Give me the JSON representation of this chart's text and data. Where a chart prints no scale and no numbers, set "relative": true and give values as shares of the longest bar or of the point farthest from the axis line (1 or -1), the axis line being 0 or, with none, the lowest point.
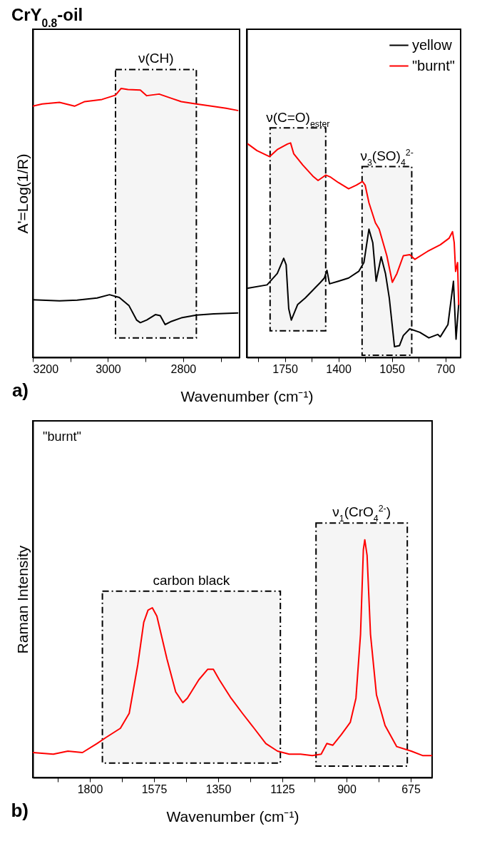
{
  "chart_data": [
    {
      "type": "line",
      "title": "CrY$_{0.8}$-oil",
      "ylabel": "A'=Log(1/R)",
      "xlabel": "Wavenumber (cm⁻¹)",
      "relative": true,
      "xlim": [
        3200,
        2650
      ],
      "xticks": [
        3200,
        {
          "value": 3100,
          "label": null
        },
        3000,
        {
          "value": 2900,
          "label": null
        },
        2800,
        {
          "value": 2700,
          "label": null
        }
      ],
      "annotations": [
        "a)"
      ],
      "bands": [
        {
          "axis": "x",
          "from": 2980,
          "to": 2765,
          "label": "ν(CH)"
        }
      ],
      "series": [
        {
          "color": "#000000",
          "x": [
            3200,
            3129,
            3082,
            3029,
            2996,
            2970,
            2944,
            2924,
            2914,
            2897,
            2874,
            2861,
            2848,
            2831,
            2805,
            2765,
            2719,
            2655
          ],
          "values": [
            0.214,
            0.21,
            0.213,
            0.221,
            0.233,
            0.223,
            0.192,
            0.139,
            0.129,
            0.139,
            0.159,
            0.155,
            0.122,
            0.134,
            0.147,
            0.157,
            0.162,
            0.165
          ]
        },
        {
          "color": "#ff0000",
          "x": [
            3200,
            3175,
            3129,
            3089,
            3062,
            3016,
            2980,
            2965,
            2947,
            2914,
            2897,
            2864,
            2831,
            2805,
            2765,
            2725,
            2686,
            2655
          ],
          "values": [
            0.934,
            0.942,
            0.948,
            0.934,
            0.951,
            0.959,
            0.975,
            1.0,
            0.996,
            0.994,
            0.973,
            0.979,
            0.963,
            0.951,
            0.942,
            0.934,
            0.926,
            0.918
          ]
        }
      ]
    },
    {
      "type": "line",
      "relative": true,
      "xlim": [
        2000,
        600
      ],
      "legend": "top right",
      "xticks": [
        {
          "value": 1925,
          "label": null
        },
        1750,
        {
          "value": 1575,
          "label": null
        },
        1400,
        {
          "value": 1225,
          "label": null
        },
        1050,
        {
          "value": 875,
          "label": null
        },
        700
      ],
      "bands": [
        {
          "axis": "x",
          "from": 1847,
          "to": 1483,
          "label": "ν(C=O)$_{ester}$"
        },
        {
          "axis": "x",
          "from": 1245,
          "to": 920,
          "label": "ν$_{3}$(SO)$_{4}$$^{2-}$"
        }
      ],
      "series": [
        {
          "name": "yellow",
          "color": "#000000",
          "x": [
            1992,
            1867,
            1800,
            1758,
            1742,
            1725,
            1708,
            1667,
            1617,
            1517,
            1492,
            1475,
            1458,
            1400,
            1333,
            1267,
            1233,
            1200,
            1175,
            1153,
            1120,
            1092,
            1067,
            1033,
            1000,
            975,
            933,
            867,
            808,
            750,
            733,
            683,
            647,
            630,
            613
          ],
          "values": [
            0.323,
            0.338,
            0.391,
            0.462,
            0.432,
            0.227,
            0.174,
            0.246,
            0.277,
            0.35,
            0.37,
            0.406,
            0.343,
            0.355,
            0.37,
            0.401,
            0.442,
            0.598,
            0.535,
            0.355,
            0.469,
            0.391,
            0.277,
            0.05,
            0.055,
            0.102,
            0.133,
            0.117,
            0.091,
            0.107,
            0.096,
            0.153,
            0.355,
            0.085,
            0.246
          ]
        },
        {
          "name": "\"burnt\"",
          "color": "#ff0000",
          "x": [
            1992,
            1933,
            1850,
            1800,
            1733,
            1713,
            1692,
            1633,
            1567,
            1533,
            1483,
            1450,
            1400,
            1333,
            1283,
            1242,
            1225,
            1200,
            1158,
            1133,
            1083,
            1047,
            1017,
            975,
            933,
            900,
            817,
            733,
            675,
            653,
            642,
            633,
            620,
            613
          ],
          "values": [
            0.995,
            0.964,
            0.936,
            0.969,
            0.995,
            1.0,
            0.949,
            0.897,
            0.845,
            0.825,
            0.85,
            0.84,
            0.815,
            0.786,
            0.803,
            0.82,
            0.803,
            0.721,
            0.628,
            0.598,
            0.474,
            0.35,
            0.391,
            0.474,
            0.479,
            0.457,
            0.494,
            0.525,
            0.556,
            0.586,
            0.535,
            0.401,
            0.442,
            0.246
          ]
        }
      ]
    },
    {
      "type": "line",
      "ylabel": "Raman Intensity",
      "xlabel": "Wavenumber (cm⁻¹)",
      "relative": true,
      "xlim": [
        2000,
        600
      ],
      "xticks": [
        {
          "value": 1912.5,
          "label": null
        },
        1800,
        {
          "value": 1687.5,
          "label": null
        },
        1575,
        {
          "value": 1462.5,
          "label": null
        },
        1350,
        {
          "value": 1237.5,
          "label": null
        },
        1125,
        {
          "value": 1012.5,
          "label": null
        },
        900,
        {
          "value": 787.5,
          "label": null
        },
        675
      ],
      "annotations": [
        "\"burnt\"",
        "b)"
      ],
      "bands": [
        {
          "axis": "x",
          "from": 1756,
          "to": 1132,
          "label": "carbon black"
        },
        {
          "axis": "x",
          "from": 1007,
          "to": 687,
          "label": "ν$_{1}$(CrO$_{4}$$^{2-}$)"
        }
      ],
      "series": [
        {
          "color": "#ff0000",
          "x": [
            1999,
            1928,
            1877,
            1826,
            1775,
            1744,
            1693,
            1662,
            1632,
            1611,
            1596,
            1581,
            1565,
            1530,
            1499,
            1474,
            1458,
            1418,
            1387,
            1367,
            1346,
            1305,
            1265,
            1224,
            1183,
            1142,
            1101,
            1061,
            1020,
            989,
            969,
            948,
            918,
            887,
            867,
            851,
            841,
            836,
            828,
            816,
            795,
            765,
            724,
            673,
            632,
            600
          ],
          "values": [
            0.105,
            0.098,
            0.111,
            0.105,
            0.143,
            0.168,
            0.207,
            0.27,
            0.474,
            0.653,
            0.704,
            0.714,
            0.679,
            0.5,
            0.36,
            0.315,
            0.334,
            0.411,
            0.455,
            0.455,
            0.411,
            0.334,
            0.27,
            0.207,
            0.143,
            0.111,
            0.098,
            0.098,
            0.092,
            0.098,
            0.143,
            0.136,
            0.181,
            0.232,
            0.334,
            0.602,
            0.959,
            1.0,
            0.934,
            0.602,
            0.347,
            0.219,
            0.13,
            0.111,
            0.092,
            0.092
          ]
        }
      ]
    }
  ]
}
